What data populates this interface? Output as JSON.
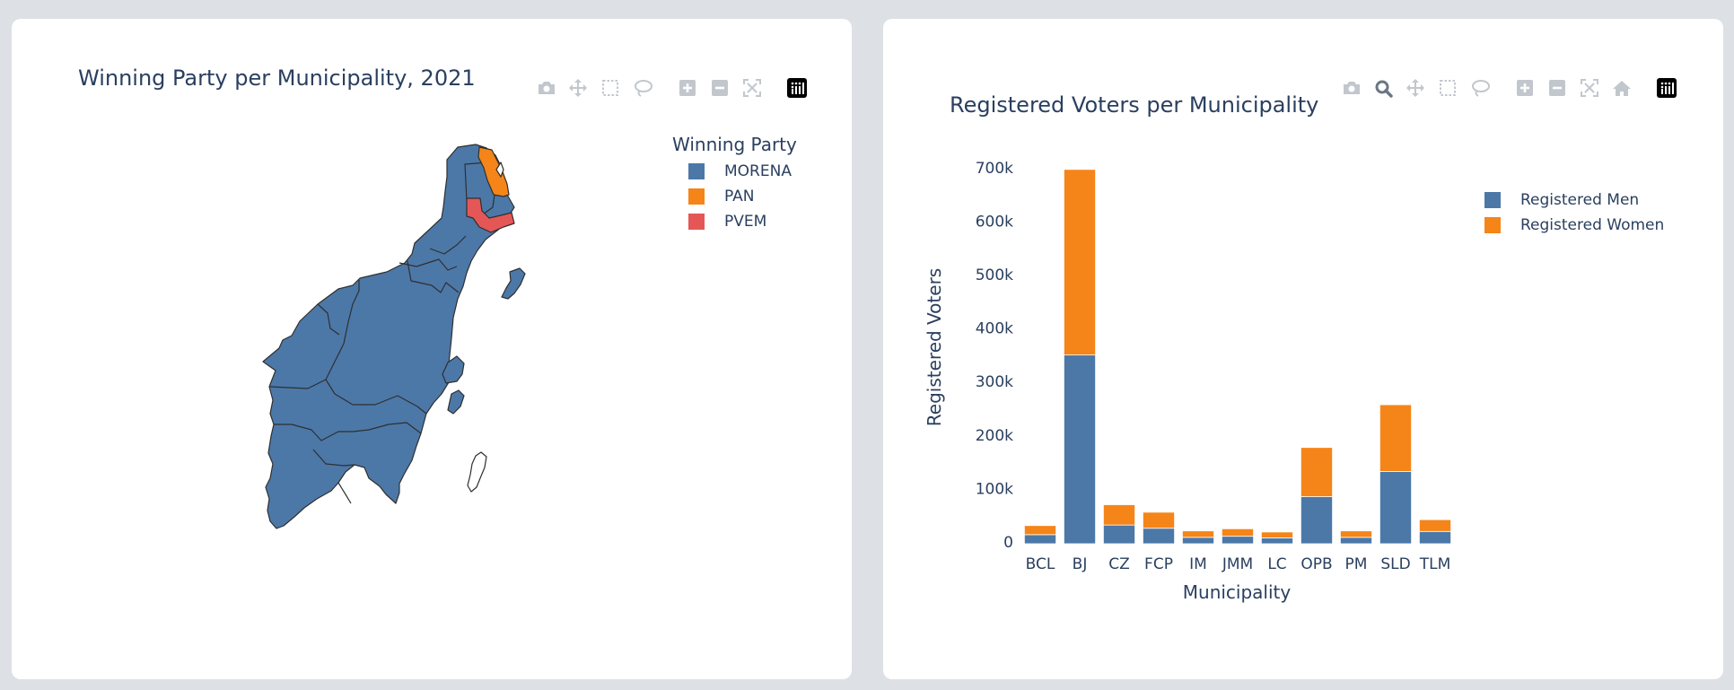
{
  "colors": {
    "morena": "#4c78a8",
    "pan": "#f58518",
    "pvem": "#e45756",
    "text": "#2a3f5f",
    "icon_gray": "#c2c7cd",
    "icon_active": "#6b7785"
  },
  "modebar_left": [
    {
      "name": "camera-icon",
      "title": "Download plot as a png"
    },
    {
      "name": "pan-move-icon",
      "title": "Pan"
    },
    {
      "name": "box-select-icon",
      "title": "Box Select"
    },
    {
      "name": "lasso-select-icon",
      "title": "Lasso Select"
    },
    {
      "name": "zoom-in-icon",
      "title": "Zoom in"
    },
    {
      "name": "zoom-out-icon",
      "title": "Zoom out"
    },
    {
      "name": "reset-view-icon",
      "title": "Reset view"
    },
    {
      "name": "plotly-logo-icon",
      "title": "Produced with Plotly"
    }
  ],
  "modebar_right": [
    {
      "name": "camera-icon",
      "title": "Download plot as a png"
    },
    {
      "name": "zoom-icon",
      "title": "Zoom"
    },
    {
      "name": "pan-move-icon",
      "title": "Pan"
    },
    {
      "name": "box-select-icon",
      "title": "Box Select"
    },
    {
      "name": "lasso-select-icon",
      "title": "Lasso Select"
    },
    {
      "name": "zoom-in-icon",
      "title": "Zoom in"
    },
    {
      "name": "zoom-out-icon",
      "title": "Zoom out"
    },
    {
      "name": "autoscale-icon",
      "title": "Autoscale"
    },
    {
      "name": "home-icon",
      "title": "Reset axes"
    },
    {
      "name": "plotly-logo-icon",
      "title": "Produced with Plotly"
    }
  ],
  "chart_data": [
    {
      "type": "choropleth",
      "title": "Winning Party per Municipality, 2021",
      "legend": {
        "title": "Winning Party",
        "placement": "top-right",
        "entries": [
          {
            "name": "MORENA",
            "color": "#4c78a8"
          },
          {
            "name": "PAN",
            "color": "#f58518"
          },
          {
            "name": "PVEM",
            "color": "#e45756"
          }
        ]
      }
    },
    {
      "type": "bar",
      "stacked": true,
      "title": "Registered Voters per Municipality",
      "xlabel": "Municipality",
      "ylabel": "Registered Voters",
      "categories": [
        "BCL",
        "BJ",
        "CZ",
        "FCP",
        "IM",
        "JMM",
        "LC",
        "OPB",
        "PM",
        "SLD",
        "TLM"
      ],
      "series": [
        {
          "name": "Registered Men",
          "color": "#4c78a8",
          "values": [
            17000,
            353000,
            35000,
            29000,
            12000,
            14000,
            11000,
            88000,
            12000,
            135000,
            23000
          ]
        },
        {
          "name": "Registered Women",
          "color": "#f58518",
          "values": [
            17000,
            347000,
            38000,
            30000,
            12000,
            14000,
            11000,
            92000,
            12000,
            125000,
            22000
          ]
        }
      ],
      "ylim": [
        0,
        740000
      ],
      "yticks": [
        0,
        100000,
        200000,
        300000,
        400000,
        500000,
        600000,
        700000
      ],
      "ytick_labels": [
        "0",
        "100k",
        "200k",
        "300k",
        "400k",
        "500k",
        "600k",
        "700k"
      ],
      "grid": false,
      "legend_placement": "top-right"
    }
  ]
}
